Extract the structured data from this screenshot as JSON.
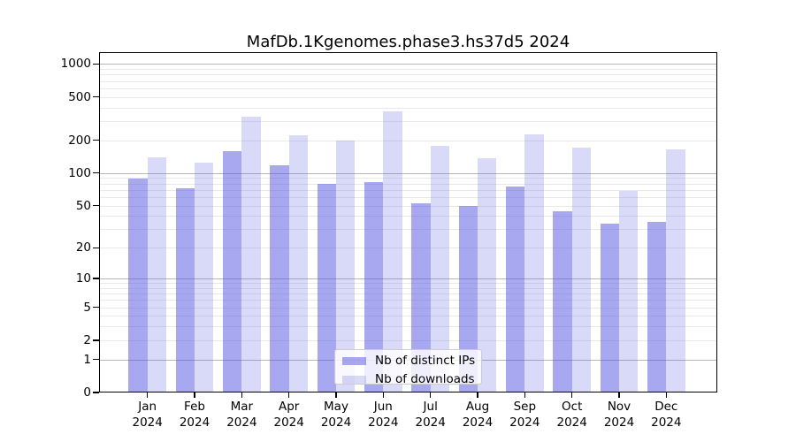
{
  "chart_data": {
    "type": "bar",
    "title": "MafDb.1Kgenomes.phase3.hs37d5 2024",
    "categories": [
      "Jan",
      "Feb",
      "Mar",
      "Apr",
      "May",
      "Jun",
      "Jul",
      "Aug",
      "Sep",
      "Oct",
      "Nov",
      "Dec"
    ],
    "category_year": "2024",
    "series": [
      {
        "name": "Nb of distinct IPs",
        "values": [
          89,
          73,
          160,
          117,
          80,
          82,
          53,
          50,
          75,
          44,
          34,
          35
        ],
        "color": "rgba(81,81,225,0.5)",
        "color_hex": "#a8a8f0"
      },
      {
        "name": "Nb of downloads",
        "values": [
          140,
          125,
          331,
          221,
          201,
          367,
          177,
          138,
          226,
          171,
          69,
          166
        ],
        "color": "rgba(81,81,225,0.22)",
        "color_hex": "#d8d8f8"
      }
    ],
    "yscale": "log1p",
    "yticks": [
      0,
      1,
      2,
      5,
      10,
      20,
      50,
      100,
      200,
      500,
      1000
    ],
    "ylim": [
      0,
      1260
    ],
    "grid": true,
    "legend_position": "lower center",
    "xlabel": "",
    "ylabel": ""
  },
  "colors": {
    "grid_major": "#b6b6b6",
    "grid_minor": "#e9e9e9",
    "axis": "#000000",
    "legend_border": "#cccccc",
    "legend_bg": "rgba(255,255,255,0.8)"
  }
}
